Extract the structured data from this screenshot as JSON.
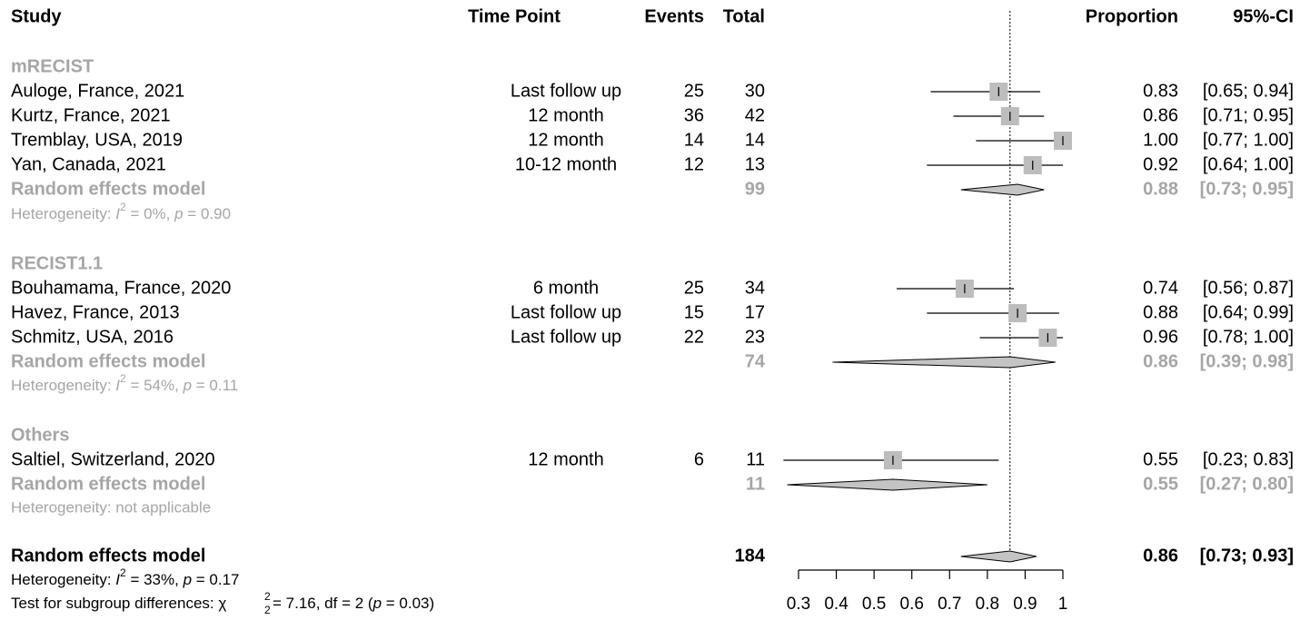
{
  "headers": {
    "study": "Study",
    "time_point": "Time Point",
    "events": "Events",
    "total": "Total",
    "proportion": "Proportion",
    "ci": "95%-CI"
  },
  "groups": [
    {
      "name": "mRECIST",
      "studies": [
        {
          "study": "Auloge, France, 2021",
          "time_point": "Last follow up",
          "events": "25",
          "total": "30",
          "prop": "0.83",
          "ci": "[0.65; 0.94]",
          "est": 0.83,
          "lo": 0.65,
          "hi": 0.94
        },
        {
          "study": "Kurtz, France, 2021",
          "time_point": "12 month",
          "events": "36",
          "total": "42",
          "prop": "0.86",
          "ci": "[0.71; 0.95]",
          "est": 0.86,
          "lo": 0.71,
          "hi": 0.95
        },
        {
          "study": "Tremblay, USA, 2019",
          "time_point": "12 month",
          "events": "14",
          "total": "14",
          "prop": "1.00",
          "ci": "[0.77; 1.00]",
          "est": 1.0,
          "lo": 0.77,
          "hi": 1.0
        },
        {
          "study": "Yan, Canada, 2021",
          "time_point": "10-12 month",
          "events": "12",
          "total": "13",
          "prop": "0.92",
          "ci": "[0.64; 1.00]",
          "est": 0.92,
          "lo": 0.64,
          "hi": 1.0
        }
      ],
      "pooled": {
        "label": "Random effects model",
        "total": "99",
        "prop": "0.88",
        "ci": "[0.73; 0.95]",
        "est": 0.88,
        "lo": 0.73,
        "hi": 0.95
      },
      "heterogeneity": {
        "prefix": "Heterogeneity: ",
        "i2": "I",
        "sup": "2",
        "mid": " = 0%, ",
        "p": "p",
        "end": " = 0.90"
      }
    },
    {
      "name": "RECIST1.1",
      "studies": [
        {
          "study": "Bouhamama, France, 2020",
          "time_point": "6 month",
          "events": "25",
          "total": "34",
          "prop": "0.74",
          "ci": "[0.56; 0.87]",
          "est": 0.74,
          "lo": 0.56,
          "hi": 0.87
        },
        {
          "study": "Havez, France, 2013",
          "time_point": "Last follow up",
          "events": "15",
          "total": "17",
          "prop": "0.88",
          "ci": "[0.64; 0.99]",
          "est": 0.88,
          "lo": 0.64,
          "hi": 0.99
        },
        {
          "study": "Schmitz, USA, 2016",
          "time_point": "Last follow up",
          "events": "22",
          "total": "23",
          "prop": "0.96",
          "ci": "[0.78; 1.00]",
          "est": 0.96,
          "lo": 0.78,
          "hi": 1.0
        }
      ],
      "pooled": {
        "label": "Random effects model",
        "total": "74",
        "prop": "0.86",
        "ci": "[0.39; 0.98]",
        "est": 0.86,
        "lo": 0.39,
        "hi": 0.98
      },
      "heterogeneity": {
        "prefix": "Heterogeneity: ",
        "i2": "I",
        "sup": "2",
        "mid": " = 54%, ",
        "p": "p",
        "end": " = 0.11"
      }
    },
    {
      "name": "Others",
      "studies": [
        {
          "study": "Saltiel, Switzerland, 2020",
          "time_point": "12 month",
          "events": "6",
          "total": "11",
          "prop": "0.55",
          "ci": "[0.23; 0.83]",
          "est": 0.55,
          "lo": 0.23,
          "hi": 0.83
        }
      ],
      "pooled": {
        "label": "Random effects model",
        "total": "11",
        "prop": "0.55",
        "ci": "[0.27; 0.80]",
        "est": 0.55,
        "lo": 0.27,
        "hi": 0.8
      },
      "heterogeneity": {
        "text": "Heterogeneity: not applicable"
      }
    }
  ],
  "overall": {
    "label": "Random effects model",
    "total": "184",
    "prop": "0.86",
    "ci": "[0.73; 0.93]",
    "est": 0.86,
    "lo": 0.73,
    "hi": 0.93,
    "heterogeneity": {
      "prefix": "Heterogeneity: ",
      "i2": "I",
      "sup": "2",
      "mid": " = 33%, ",
      "p": "p",
      "end": " = 0.17"
    },
    "subgroup_test": {
      "prefix": "Test for subgroup differences: ",
      "chi": "χ",
      "sup": "2",
      "sub": "2",
      "mid": " = 7.16, df = 2 (",
      "p": "p",
      "end": " = 0.03)"
    }
  },
  "chart_data": {
    "type": "forest",
    "xlim": [
      0.3,
      1.0
    ],
    "ticks": [
      "0.3",
      "0.4",
      "0.5",
      "0.6",
      "0.7",
      "0.8",
      "0.9",
      "1"
    ],
    "tick_values": [
      0.3,
      0.4,
      0.5,
      0.6,
      0.7,
      0.8,
      0.9,
      1.0
    ],
    "reference_line": 0.86
  },
  "colors": {
    "box": "#bdbdbd",
    "diamond": "#c4c4c4",
    "group_text": "#a6a6a6",
    "line": "#000000"
  }
}
